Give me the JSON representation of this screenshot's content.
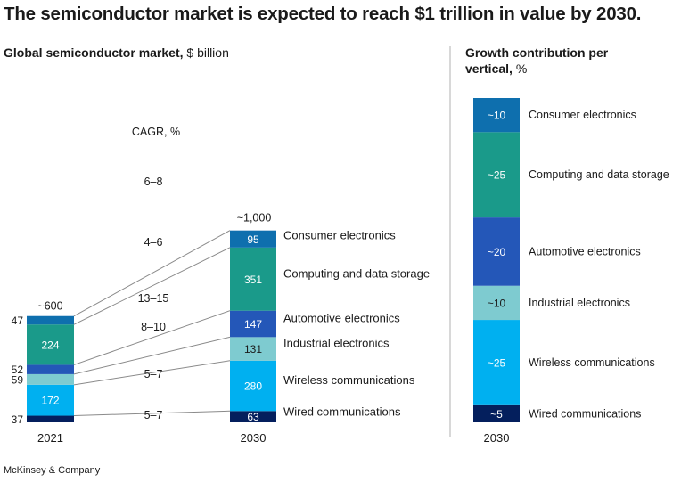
{
  "page": {
    "title": "The semiconductor market is expected to reach $1 trillion in value by 2030.",
    "left_subtitle_bold": "Global semiconductor market,",
    "left_subtitle_unit": " $ billion",
    "right_subtitle_bold_line1": "Growth contribution per",
    "right_subtitle_bold_line2": "vertical,",
    "right_subtitle_unit": " %",
    "footer": "McKinsey & Company"
  },
  "chart_data": [
    {
      "type": "bar",
      "stacked": true,
      "title": "Global semiconductor market, $ billion",
      "categories": [
        "2021",
        "2030"
      ],
      "totals": [
        "~600",
        "~1,000"
      ],
      "cagr_label": "CAGR, %",
      "series": [
        {
          "name": "Wired communications",
          "color": "#041f5d",
          "values": [
            37,
            63
          ],
          "labels": [
            "37",
            "63"
          ],
          "cagr": "5–7"
        },
        {
          "name": "Wireless communications",
          "color": "#00b0f0",
          "values": [
            172,
            280
          ],
          "labels": [
            "172",
            "280"
          ],
          "cagr": "5–7"
        },
        {
          "name": "Industrial electronics",
          "color": "#7ecbd0",
          "values": [
            59,
            131
          ],
          "labels": [
            "59",
            "131"
          ],
          "cagr": "8–10"
        },
        {
          "name": "Automotive electronics",
          "color": "#2457b8",
          "values": [
            52,
            147
          ],
          "labels": [
            "52",
            "147"
          ],
          "cagr": "13–15"
        },
        {
          "name": "Computing and data storage",
          "color": "#1a9a8a",
          "values": [
            224,
            351
          ],
          "labels": [
            "224",
            "351"
          ],
          "cagr": "4–6"
        },
        {
          "name": "Consumer electronics",
          "color": "#0e6fae",
          "values": [
            47,
            95
          ],
          "labels": [
            "47",
            "95"
          ],
          "cagr": "6–8"
        }
      ]
    },
    {
      "type": "bar",
      "stacked": true,
      "title": "Growth contribution per vertical, %",
      "categories": [
        "2030"
      ],
      "series": [
        {
          "name": "Wired communications",
          "color": "#041f5d",
          "values": [
            5
          ],
          "labels": [
            "~5"
          ]
        },
        {
          "name": "Wireless communications",
          "color": "#00b0f0",
          "values": [
            25
          ],
          "labels": [
            "~25"
          ]
        },
        {
          "name": "Industrial electronics",
          "color": "#7ecbd0",
          "values": [
            10
          ],
          "labels": [
            "~10"
          ]
        },
        {
          "name": "Automotive electronics",
          "color": "#2457b8",
          "values": [
            20
          ],
          "labels": [
            "~20"
          ]
        },
        {
          "name": "Computing and data storage",
          "color": "#1a9a8a",
          "values": [
            25
          ],
          "labels": [
            "~25"
          ]
        },
        {
          "name": "Consumer electronics",
          "color": "#0e6fae",
          "values": [
            10
          ],
          "labels": [
            "~10"
          ]
        }
      ]
    }
  ]
}
